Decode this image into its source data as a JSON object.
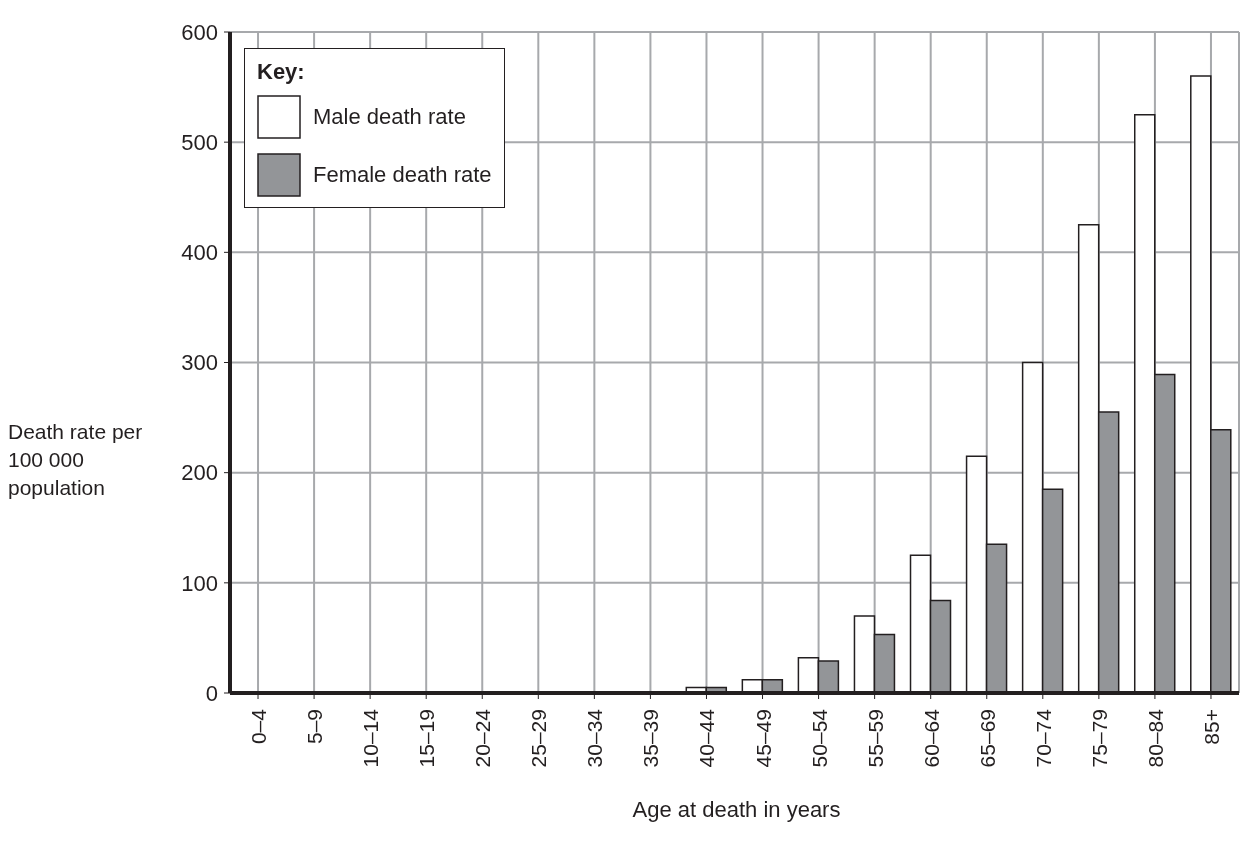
{
  "chart_data": {
    "type": "bar",
    "xlabel": "Age at death in years",
    "ylabel": "Death rate per 100 000 population",
    "legend_title": "Key:",
    "categories": [
      "0–4",
      "5–9",
      "10–14",
      "15–19",
      "20–24",
      "25–29",
      "30–34",
      "35–39",
      "40–44",
      "45–49",
      "50–54",
      "55–59",
      "60–64",
      "65–69",
      "70–74",
      "75–79",
      "80–84",
      "85+"
    ],
    "series": [
      {
        "name": "Male death rate",
        "color": "#ffffff",
        "values": [
          0,
          0,
          0,
          0,
          0,
          0,
          0,
          0,
          5,
          12,
          32,
          70,
          125,
          215,
          300,
          425,
          525,
          560
        ]
      },
      {
        "name": "Female death rate",
        "color": "#939598",
        "values": [
          0,
          0,
          0,
          0,
          0,
          0,
          0,
          0,
          5,
          12,
          29,
          53,
          84,
          135,
          185,
          255,
          289,
          239
        ]
      }
    ],
    "ylim": [
      0,
      600
    ],
    "yticks": [
      0,
      100,
      200,
      300,
      400,
      500,
      600
    ],
    "grid": true,
    "legend": "top left"
  }
}
